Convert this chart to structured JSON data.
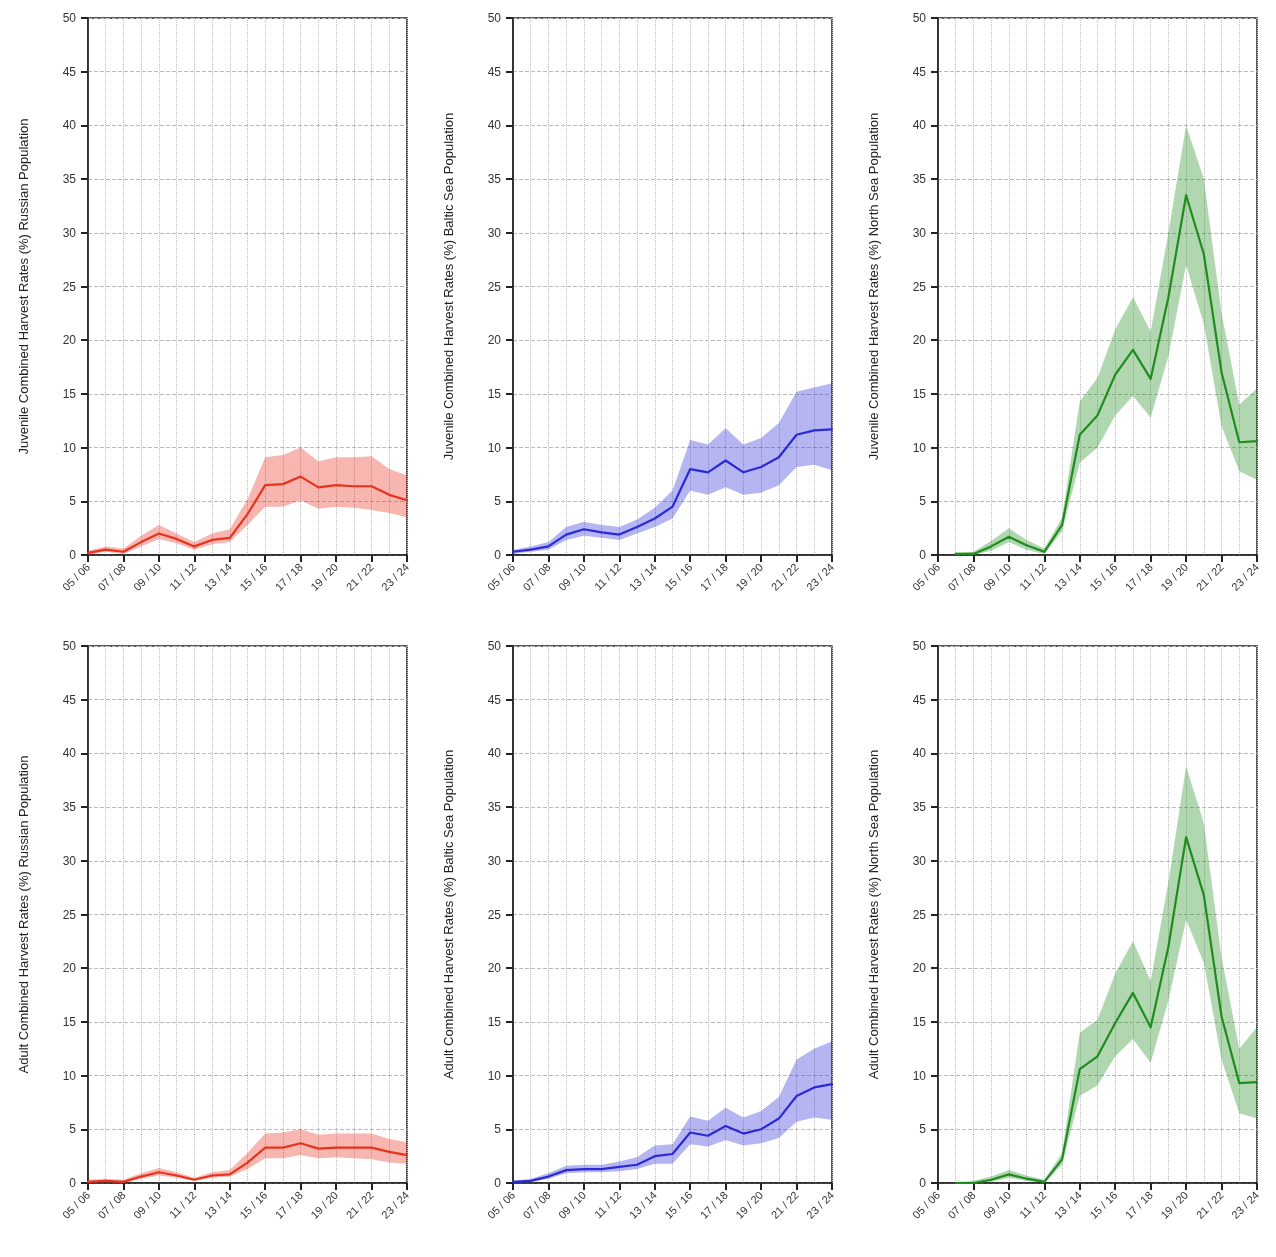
{
  "chart_data": [
    {
      "type": "line",
      "ylabel": "Juvenile Combined Harvest Rates (%) Russian Population",
      "categories": [
        "05 / 06",
        null,
        "07 / 08",
        null,
        "09 / 10",
        null,
        "11 / 12",
        null,
        "13 / 14",
        null,
        "15 / 16",
        null,
        "17 / 18",
        null,
        "19 / 20",
        null,
        "21 / 22",
        null,
        "23 / 24"
      ],
      "ylim": [
        0,
        50
      ],
      "yticks": [
        0,
        5,
        10,
        15,
        20,
        25,
        30,
        35,
        40,
        45,
        50
      ],
      "grid": true,
      "marker": "none",
      "line_style": "solid",
      "series": [
        {
          "color": "#e8321e",
          "values": [
            0.2,
            0.5,
            0.3,
            1.2,
            2.0,
            1.5,
            0.8,
            1.4,
            1.6,
            3.8,
            6.5,
            6.6,
            7.3,
            6.3,
            6.5,
            6.4,
            6.4,
            5.6,
            5.1
          ],
          "upper": [
            0.4,
            0.8,
            0.6,
            1.8,
            2.8,
            2.0,
            1.2,
            2.0,
            2.4,
            5.2,
            9.1,
            9.3,
            10.0,
            8.7,
            9.1,
            9.1,
            9.2,
            8.0,
            7.4
          ],
          "lower": [
            0,
            0.3,
            0.1,
            0.8,
            1.5,
            1.1,
            0.5,
            1.0,
            1.2,
            2.8,
            4.5,
            4.5,
            5.1,
            4.3,
            4.5,
            4.4,
            4.2,
            3.9,
            3.5
          ]
        }
      ]
    },
    {
      "type": "line",
      "ylabel": "Juvenile Combined Harvest Rates (%) Baltic Sea Population",
      "categories": [
        "05 / 06",
        null,
        "07 / 08",
        null,
        "09 / 10",
        null,
        "11 / 12",
        null,
        "13 / 14",
        null,
        "15 / 16",
        null,
        "17 / 18",
        null,
        "19 / 20",
        null,
        "21 / 22",
        null,
        "23 / 24"
      ],
      "ylim": [
        0,
        50
      ],
      "yticks": [
        0,
        5,
        10,
        15,
        20,
        25,
        30,
        35,
        40,
        45,
        50
      ],
      "grid": true,
      "marker": "none",
      "line_style": "solid",
      "series": [
        {
          "color": "#2a2ad8",
          "values": [
            0.3,
            0.5,
            0.8,
            1.9,
            2.4,
            2.1,
            1.9,
            2.6,
            3.4,
            4.5,
            8.0,
            7.7,
            8.8,
            7.7,
            8.2,
            9.1,
            11.2,
            11.6,
            11.7
          ],
          "upper": [
            0.5,
            0.8,
            1.2,
            2.6,
            3.1,
            2.8,
            2.6,
            3.3,
            4.4,
            6.0,
            10.7,
            10.3,
            11.8,
            10.3,
            10.9,
            12.3,
            15.2,
            15.6,
            16.0
          ],
          "lower": [
            0.1,
            0.3,
            0.5,
            1.4,
            1.8,
            1.6,
            1.4,
            2.0,
            2.6,
            3.4,
            6.0,
            5.6,
            6.3,
            5.6,
            5.8,
            6.5,
            8.2,
            8.4,
            7.9
          ]
        }
      ]
    },
    {
      "type": "line",
      "ylabel": "Juvenile Combined Harvest Rates (%) North Sea Population",
      "categories": [
        "05 / 06",
        null,
        "07 / 08",
        null,
        "09 / 10",
        null,
        "11 / 12",
        null,
        "13 / 14",
        null,
        "15 / 16",
        null,
        "17 / 18",
        null,
        "19 / 20",
        null,
        "21 / 22",
        null,
        "23 / 24"
      ],
      "ylim": [
        0,
        50
      ],
      "yticks": [
        0,
        5,
        10,
        15,
        20,
        25,
        30,
        35,
        40,
        45,
        50
      ],
      "grid": true,
      "marker": "none",
      "line_style": "solid",
      "series": [
        {
          "color": "#1e8c1e",
          "values": [
            null,
            0.1,
            0.1,
            0.8,
            1.7,
            0.9,
            0.3,
            2.8,
            11.2,
            13.0,
            16.8,
            19.1,
            16.4,
            24.0,
            33.5,
            28.0,
            17.0,
            10.5,
            10.6
          ],
          "upper": [
            null,
            0.2,
            0.3,
            1.3,
            2.5,
            1.4,
            0.6,
            3.5,
            14.3,
            16.5,
            21.0,
            24.0,
            20.8,
            30.0,
            40.0,
            35.0,
            22.5,
            14.0,
            15.5
          ],
          "lower": [
            null,
            0,
            0,
            0.4,
            1.2,
            0.5,
            0.1,
            2.2,
            8.6,
            10.0,
            13.0,
            14.8,
            12.8,
            18.5,
            27.0,
            21.5,
            12.0,
            7.8,
            7.0
          ]
        }
      ]
    },
    {
      "type": "line",
      "ylabel": "Adult Combined Harvest Rates (%) Russian Population",
      "categories": [
        "05 / 06",
        null,
        "07 / 08",
        null,
        "09 / 10",
        null,
        "11 / 12",
        null,
        "13 / 14",
        null,
        "15 / 16",
        null,
        "17 / 18",
        null,
        "19 / 20",
        null,
        "21 / 22",
        null,
        "23 / 24"
      ],
      "ylim": [
        0,
        50
      ],
      "yticks": [
        0,
        5,
        10,
        15,
        20,
        25,
        30,
        35,
        40,
        45,
        50
      ],
      "grid": true,
      "marker": "none",
      "line_style": "solid",
      "series": [
        {
          "color": "#e8321e",
          "values": [
            0.1,
            0.2,
            0.1,
            0.6,
            1.0,
            0.7,
            0.3,
            0.7,
            0.8,
            1.9,
            3.3,
            3.3,
            3.7,
            3.2,
            3.3,
            3.3,
            3.3,
            2.9,
            2.6
          ],
          "upper": [
            0.3,
            0.4,
            0.3,
            0.9,
            1.4,
            1.0,
            0.5,
            1.0,
            1.2,
            2.8,
            4.6,
            4.7,
            5.0,
            4.5,
            4.6,
            4.6,
            4.6,
            4.1,
            3.8
          ],
          "lower": [
            0,
            0.1,
            0,
            0.4,
            0.7,
            0.5,
            0.2,
            0.5,
            0.6,
            1.3,
            2.3,
            2.3,
            2.6,
            2.3,
            2.4,
            2.3,
            2.2,
            1.9,
            1.8
          ]
        }
      ]
    },
    {
      "type": "line",
      "ylabel": "Adult Combined Harvest Rates (%) Baltic Sea Population",
      "categories": [
        "05 / 06",
        null,
        "07 / 08",
        null,
        "09 / 10",
        null,
        "11 / 12",
        null,
        "13 / 14",
        null,
        "15 / 16",
        null,
        "17 / 18",
        null,
        "19 / 20",
        null,
        "21 / 22",
        null,
        "23 / 24"
      ],
      "ylim": [
        0,
        50
      ],
      "yticks": [
        0,
        5,
        10,
        15,
        20,
        25,
        30,
        35,
        40,
        45,
        50
      ],
      "grid": true,
      "marker": "none",
      "line_style": "solid",
      "series": [
        {
          "color": "#2a2ad8",
          "values": [
            0.1,
            0.2,
            0.6,
            1.2,
            1.3,
            1.3,
            1.5,
            1.7,
            2.5,
            2.7,
            4.7,
            4.4,
            5.3,
            4.6,
            5.0,
            6.0,
            8.1,
            8.9,
            9.2
          ],
          "upper": [
            0.2,
            0.4,
            0.9,
            1.6,
            1.7,
            1.7,
            2.0,
            2.4,
            3.5,
            3.6,
            6.2,
            5.8,
            7.0,
            6.1,
            6.7,
            8.0,
            11.5,
            12.5,
            13.2
          ],
          "lower": [
            0,
            0.1,
            0.4,
            0.9,
            1.0,
            1.0,
            1.1,
            1.3,
            1.8,
            1.8,
            3.6,
            3.4,
            4.0,
            3.5,
            3.7,
            4.2,
            5.7,
            6.1,
            5.9
          ]
        }
      ]
    },
    {
      "type": "line",
      "ylabel": "Adult Combined Harvest Rates (%) North Sea Population",
      "categories": [
        "05 / 06",
        null,
        "07 / 08",
        null,
        "09 / 10",
        null,
        "11 / 12",
        null,
        "13 / 14",
        null,
        "15 / 16",
        null,
        "17 / 18",
        null,
        "19 / 20",
        null,
        "21 / 22",
        null,
        "23 / 24"
      ],
      "ylim": [
        0,
        50
      ],
      "yticks": [
        0,
        5,
        10,
        15,
        20,
        25,
        30,
        35,
        40,
        45,
        50
      ],
      "grid": true,
      "marker": "none",
      "line_style": "solid",
      "series": [
        {
          "color": "#1e8c1e",
          "values": [
            null,
            0,
            0,
            0.3,
            0.8,
            0.4,
            0.1,
            2.2,
            10.6,
            11.8,
            14.9,
            17.7,
            14.5,
            22.0,
            32.2,
            26.8,
            15.5,
            9.3,
            9.4
          ],
          "upper": [
            null,
            0.1,
            0.2,
            0.6,
            1.2,
            0.7,
            0.3,
            2.8,
            14.0,
            15.2,
            19.5,
            22.5,
            18.8,
            28.0,
            38.8,
            33.5,
            21.0,
            12.5,
            14.5
          ],
          "lower": [
            null,
            0,
            0,
            0.1,
            0.5,
            0.2,
            0,
            1.7,
            8.1,
            9.1,
            11.8,
            13.4,
            11.2,
            17.0,
            24.5,
            20.5,
            11.5,
            6.5,
            6.0
          ]
        }
      ]
    }
  ]
}
